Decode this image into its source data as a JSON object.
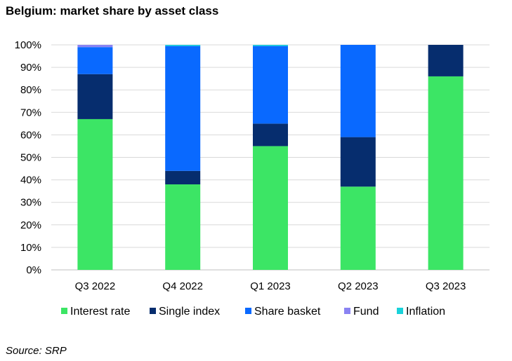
{
  "title": "Belgium: market share by asset class",
  "source": "Source: SRP",
  "chart_data": {
    "type": "bar",
    "stacked": true,
    "categories": [
      "Q3 2022",
      "Q4 2022",
      "Q1 2023",
      "Q2 2023",
      "Q3 2023"
    ],
    "y_ticks": [
      "0%",
      "10%",
      "20%",
      "30%",
      "40%",
      "50%",
      "60%",
      "70%",
      "80%",
      "90%",
      "100%"
    ],
    "ylim": [
      0,
      100
    ],
    "grid": true,
    "legend_position": "bottom",
    "series": [
      {
        "name": "Interest rate",
        "color": "#3ce565",
        "values": [
          67,
          38,
          55,
          37,
          86
        ]
      },
      {
        "name": "Single index",
        "color": "#062d6e",
        "values": [
          20,
          6,
          10,
          22,
          14
        ]
      },
      {
        "name": "Share basket",
        "color": "#0969ff",
        "values": [
          12,
          55.5,
          34.5,
          41,
          0
        ]
      },
      {
        "name": "Fund",
        "color": "#8a83f2",
        "values": [
          1,
          0,
          0,
          0,
          0
        ]
      },
      {
        "name": "Inflation",
        "color": "#19d2da",
        "values": [
          0,
          0.5,
          0.5,
          0,
          0
        ]
      }
    ]
  }
}
